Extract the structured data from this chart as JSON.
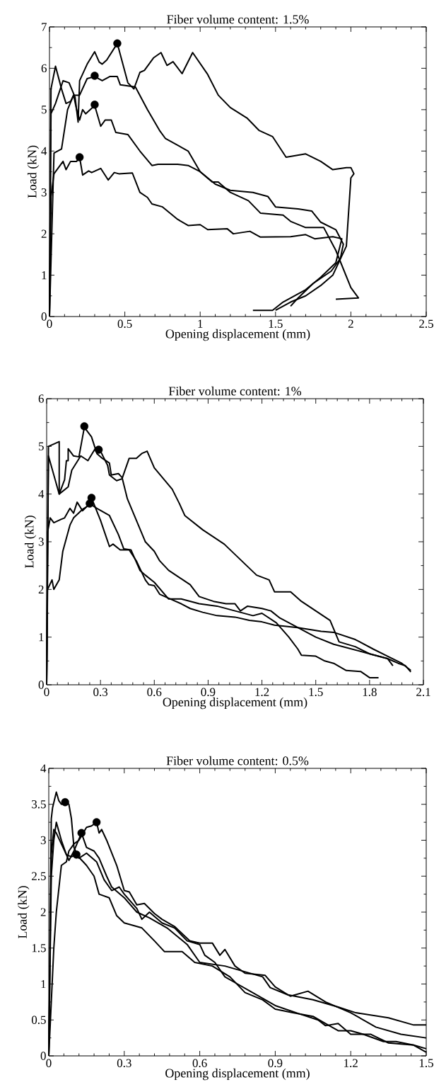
{
  "chart_data": [
    {
      "type": "line",
      "title": "Fiber volume content: 1.5%",
      "xlabel": "Opening displacement (mm)",
      "ylabel": "Load (kN)",
      "line_style": "solid",
      "xlim": [
        0,
        2.5
      ],
      "ylim": [
        0,
        7
      ],
      "xticks": [
        0,
        {
          "value": 0.1,
          "label": null
        },
        {
          "value": 0.2,
          "label": null
        },
        {
          "value": 0.3,
          "label": null
        },
        {
          "value": 0.4,
          "label": null
        },
        0.5,
        {
          "value": 0.6,
          "label": null
        },
        {
          "value": 0.7,
          "label": null
        },
        {
          "value": 0.8,
          "label": null
        },
        {
          "value": 0.9,
          "label": null
        },
        1,
        {
          "value": 1.1,
          "label": null
        },
        {
          "value": 1.2,
          "label": null
        },
        {
          "value": 1.3,
          "label": null
        },
        {
          "value": 1.4,
          "label": null
        },
        1.5,
        {
          "value": 1.6,
          "label": null
        },
        {
          "value": 1.7,
          "label": null
        },
        {
          "value": 1.8,
          "label": null
        },
        {
          "value": 1.9,
          "label": null
        },
        2,
        {
          "value": 2.1,
          "label": null
        },
        {
          "value": 2.2,
          "label": null
        },
        {
          "value": 2.3,
          "label": null
        },
        {
          "value": 2.4,
          "label": null
        },
        2.5
      ],
      "yticks": [
        0,
        {
          "value": 0.5,
          "label": null
        },
        1,
        {
          "value": 1.5,
          "label": null
        },
        2,
        {
          "value": 2.5,
          "label": null
        },
        3,
        {
          "value": 3.5,
          "label": null
        },
        4,
        {
          "value": 4.5,
          "label": null
        },
        5,
        {
          "value": 5.5,
          "label": null
        },
        6,
        {
          "value": 6.5,
          "label": null
        },
        7
      ],
      "series": [
        {
          "color": "#000000",
          "x": [
            0,
            0.01,
            0.04,
            0.09,
            0.13,
            0.17,
            0.19,
            0.2,
            0.25,
            0.3,
            0.33,
            0.35,
            0.38,
            0.45,
            0.52,
            0.56,
            0.6,
            0.63,
            0.69,
            0.74,
            0.78,
            0.82,
            0.88,
            0.95,
            1.05,
            1.12,
            1.2,
            1.31,
            1.39,
            1.48,
            1.57,
            1.7,
            1.8,
            1.88,
            1.97,
            2.0,
            2.02,
            2.0,
            1.97,
            1.88,
            1.8,
            1.7,
            1.6,
            1.5
          ],
          "values": [
            0,
            4.9,
            5.15,
            5.7,
            5.65,
            5.3,
            4.7,
            5.7,
            6.1,
            6.4,
            6.15,
            6.1,
            6.2,
            6.6,
            5.65,
            5.5,
            5.9,
            5.95,
            6.25,
            6.38,
            6.07,
            6.16,
            5.87,
            6.38,
            5.85,
            5.35,
            5.05,
            4.8,
            4.5,
            4.35,
            3.85,
            3.93,
            3.75,
            3.55,
            3.6,
            3.6,
            3.45,
            3.35,
            1.7,
            1.0,
            0.75,
            0.5,
            0.35,
            0.15
          ]
        },
        {
          "color": "#000000",
          "x": [
            0,
            0.03,
            0.08,
            0.12,
            0.16,
            0.2,
            0.25,
            0.3,
            0.35,
            0.4,
            0.45,
            0.47,
            0.57,
            0.65,
            0.73,
            0.77,
            0.92,
            1.0,
            1.08,
            1.12,
            1.2,
            1.32,
            1.4,
            1.55,
            1.6,
            1.7,
            1.82,
            1.9,
            2.0,
            2.05,
            1.9
          ],
          "values": [
            0,
            3.95,
            4.05,
            5.0,
            5.35,
            5.35,
            5.75,
            5.8,
            5.7,
            5.8,
            5.8,
            5.6,
            5.55,
            5.0,
            4.5,
            4.3,
            4.0,
            3.5,
            3.25,
            3.25,
            3.0,
            2.8,
            2.5,
            2.45,
            2.3,
            2.15,
            2.15,
            1.6,
            0.7,
            0.45,
            0.42
          ]
        },
        {
          "color": "#000000",
          "x": [
            0,
            0.01,
            0.04,
            0.08,
            0.11,
            0.14,
            0.16,
            0.18,
            0.2,
            0.22,
            0.24,
            0.3,
            0.34,
            0.37,
            0.41,
            0.44,
            0.52,
            0.6,
            0.68,
            0.72,
            0.85,
            0.92,
            1.0,
            1.05,
            1.1,
            1.2,
            1.35,
            1.45,
            1.5,
            1.65,
            1.74,
            1.8,
            1.9,
            1.95,
            1.93,
            1.87,
            1.75,
            1.65,
            1.6
          ],
          "values": [
            0,
            5.5,
            6.05,
            5.5,
            5.15,
            5.2,
            5.35,
            5.0,
            4.75,
            5.0,
            4.9,
            5.1,
            4.6,
            4.75,
            4.75,
            4.45,
            4.4,
            4.0,
            3.65,
            3.68,
            3.68,
            3.65,
            3.5,
            3.35,
            3.2,
            3.05,
            3.0,
            2.9,
            2.65,
            2.6,
            2.55,
            2.28,
            2.1,
            1.75,
            1.4,
            1.1,
            0.8,
            0.45,
            0.25
          ]
        },
        {
          "color": "#000000",
          "x": [
            0,
            0.01,
            0.03,
            0.06,
            0.09,
            0.11,
            0.14,
            0.18,
            0.2,
            0.22,
            0.26,
            0.28,
            0.34,
            0.39,
            0.43,
            0.46,
            0.55,
            0.6,
            0.65,
            0.68,
            0.75,
            0.85,
            0.92,
            1.0,
            1.05,
            1.18,
            1.22,
            1.33,
            1.4,
            1.6,
            1.7,
            1.76,
            1.88,
            1.94,
            1.9,
            1.8,
            1.7,
            1.55,
            1.48,
            1.35
          ],
          "values": [
            0,
            2.9,
            3.45,
            3.6,
            3.75,
            3.55,
            3.75,
            3.75,
            3.85,
            3.42,
            3.52,
            3.48,
            3.58,
            3.3,
            3.48,
            3.45,
            3.47,
            3.0,
            2.88,
            2.72,
            2.65,
            2.35,
            2.2,
            2.22,
            2.1,
            2.12,
            2.0,
            2.06,
            1.92,
            1.93,
            1.98,
            1.88,
            1.93,
            1.88,
            1.3,
            0.95,
            0.65,
            0.35,
            0.15,
            0.15
          ]
        },
        {
          "type": "scatter",
          "color": "#000000",
          "x": [
            0.45,
            0.3,
            0.3,
            0.2
          ],
          "values": [
            6.6,
            5.82,
            5.12,
            3.85
          ]
        }
      ]
    },
    {
      "type": "line",
      "title": "Fiber volume content: 1%",
      "xlabel": "Opening displacement (mm)",
      "ylabel": "Load (kN)",
      "line_style": "solid",
      "xlim": [
        0,
        2.1
      ],
      "ylim": [
        0,
        6
      ],
      "xticks": [
        0,
        {
          "value": 0.06,
          "label": null
        },
        {
          "value": 0.12,
          "label": null
        },
        {
          "value": 0.18,
          "label": null
        },
        {
          "value": 0.24,
          "label": null
        },
        0.3,
        {
          "value": 0.36,
          "label": null
        },
        {
          "value": 0.42,
          "label": null
        },
        {
          "value": 0.48,
          "label": null
        },
        {
          "value": 0.54,
          "label": null
        },
        0.6,
        {
          "value": 0.66,
          "label": null
        },
        {
          "value": 0.72,
          "label": null
        },
        {
          "value": 0.78,
          "label": null
        },
        {
          "value": 0.84,
          "label": null
        },
        0.9,
        {
          "value": 0.96,
          "label": null
        },
        {
          "value": 1.02,
          "label": null
        },
        {
          "value": 1.08,
          "label": null
        },
        {
          "value": 1.14,
          "label": null
        },
        1.2,
        {
          "value": 1.26,
          "label": null
        },
        {
          "value": 1.32,
          "label": null
        },
        {
          "value": 1.38,
          "label": null
        },
        {
          "value": 1.44,
          "label": null
        },
        1.5,
        {
          "value": 1.56,
          "label": null
        },
        {
          "value": 1.62,
          "label": null
        },
        {
          "value": 1.68,
          "label": null
        },
        {
          "value": 1.74,
          "label": null
        },
        1.8,
        {
          "value": 1.86,
          "label": null
        },
        {
          "value": 1.92,
          "label": null
        },
        {
          "value": 1.98,
          "label": null
        },
        {
          "value": 2.04,
          "label": null
        },
        2.1
      ],
      "yticks": [
        0,
        {
          "value": 0.5,
          "label": null
        },
        1,
        {
          "value": 1.5,
          "label": null
        },
        2,
        {
          "value": 2.5,
          "label": null
        },
        3,
        {
          "value": 3.5,
          "label": null
        },
        4,
        {
          "value": 4.5,
          "label": null
        },
        5,
        {
          "value": 5.5,
          "label": null
        },
        6
      ],
      "series": [
        {
          "color": "#000000",
          "x": [
            0,
            0.01,
            0.07,
            0.07,
            0.1,
            0.11,
            0.12,
            0.12,
            0.15,
            0.18,
            0.21,
            0.25,
            0.28,
            0.31,
            0.35,
            0.36,
            0.4,
            0.42,
            0.45,
            0.5,
            0.55,
            0.6,
            0.63,
            0.68,
            0.76,
            0.8,
            0.85,
            0.93,
            1.0,
            1.05,
            1.08,
            1.12,
            1.2,
            1.25,
            1.3,
            1.35,
            1.4,
            1.45,
            1.5,
            1.6,
            1.7,
            1.8,
            1.9,
            1.93
          ],
          "values": [
            0,
            5.0,
            5.1,
            4.0,
            4.3,
            4.7,
            4.7,
            4.95,
            4.8,
            4.78,
            5.4,
            5.2,
            4.85,
            4.75,
            4.65,
            4.4,
            4.43,
            4.35,
            3.9,
            3.45,
            3.0,
            2.8,
            2.6,
            2.4,
            2.2,
            2.1,
            1.85,
            1.75,
            1.7,
            1.7,
            1.55,
            1.65,
            1.6,
            1.55,
            1.4,
            1.3,
            1.2,
            1.1,
            1.0,
            0.85,
            0.75,
            0.65,
            0.55,
            0.4
          ]
        },
        {
          "color": "#000000",
          "x": [
            0,
            0.01,
            0.07,
            0.12,
            0.14,
            0.19,
            0.23,
            0.27,
            0.3,
            0.32,
            0.34,
            0.35,
            0.39,
            0.42,
            0.46,
            0.5,
            0.53,
            0.56,
            0.6,
            0.7,
            0.74,
            0.77,
            0.87,
            0.99,
            1.17,
            1.24,
            1.27,
            1.36,
            1.42,
            1.58,
            1.63,
            1.72,
            1.8,
            1.9,
            1.96,
            2.0,
            2.03
          ],
          "values": [
            0,
            4.8,
            4.0,
            4.15,
            4.5,
            4.8,
            4.7,
            4.95,
            4.9,
            4.75,
            4.6,
            4.4,
            4.28,
            4.32,
            4.75,
            4.75,
            4.85,
            4.9,
            4.55,
            4.1,
            3.8,
            3.55,
            3.25,
            2.95,
            2.3,
            2.2,
            1.95,
            1.95,
            1.75,
            1.35,
            0.9,
            0.8,
            0.65,
            0.55,
            0.45,
            0.4,
            0.27
          ]
        },
        {
          "color": "#000000",
          "x": [
            0,
            0.005,
            0.03,
            0.04,
            0.07,
            0.09,
            0.13,
            0.15,
            0.2,
            0.23,
            0.25,
            0.3,
            0.35,
            0.37,
            0.41,
            0.46,
            0.5,
            0.55,
            0.57,
            0.6,
            0.63,
            0.69,
            0.75,
            0.8,
            0.87,
            0.95,
            1.05,
            1.13,
            1.2,
            1.27,
            1.4,
            1.53,
            1.6,
            1.72,
            1.82,
            1.9,
            1.98,
            2.03
          ],
          "values": [
            0,
            2.0,
            2.2,
            2.0,
            2.2,
            2.8,
            3.35,
            3.5,
            3.68,
            3.75,
            3.92,
            3.45,
            2.9,
            2.95,
            2.83,
            2.83,
            2.6,
            2.2,
            2.1,
            2.08,
            1.9,
            1.8,
            1.7,
            1.6,
            1.52,
            1.45,
            1.42,
            1.35,
            1.32,
            1.25,
            1.2,
            1.12,
            1.1,
            0.95,
            0.75,
            0.6,
            0.45,
            0.3
          ]
        },
        {
          "color": "#000000",
          "x": [
            0,
            0.005,
            0.02,
            0.04,
            0.08,
            0.1,
            0.13,
            0.15,
            0.17,
            0.2,
            0.24,
            0.28,
            0.35,
            0.4,
            0.43,
            0.47,
            0.52,
            0.55,
            0.6,
            0.68,
            0.75,
            0.85,
            0.95,
            1.05,
            1.15,
            1.2,
            1.28,
            1.35,
            1.4,
            1.42,
            1.5,
            1.55,
            1.6,
            1.67,
            1.75,
            1.8,
            1.85
          ],
          "values": [
            0,
            3.2,
            3.5,
            3.4,
            3.47,
            3.5,
            3.7,
            3.6,
            3.83,
            3.65,
            3.8,
            3.7,
            3.55,
            3.15,
            2.85,
            2.83,
            2.4,
            2.3,
            2.15,
            1.8,
            1.8,
            1.7,
            1.65,
            1.55,
            1.45,
            1.5,
            1.3,
            1.0,
            0.75,
            0.62,
            0.6,
            0.5,
            0.45,
            0.3,
            0.28,
            0.15,
            0.15
          ]
        },
        {
          "type": "scatter",
          "color": "#000000",
          "x": [
            0.21,
            0.29,
            0.25,
            0.24
          ],
          "values": [
            5.42,
            4.93,
            3.92,
            3.8
          ]
        }
      ]
    },
    {
      "type": "line",
      "title": "Fiber volume content: 0.5%",
      "xlabel": "Opening displacement (mm)",
      "ylabel": "Load (kN)",
      "line_style": "solid",
      "xlim": [
        0,
        1.5
      ],
      "ylim": [
        0,
        4
      ],
      "xticks": [
        0,
        {
          "value": 0.06,
          "label": null
        },
        {
          "value": 0.12,
          "label": null
        },
        {
          "value": 0.18,
          "label": null
        },
        {
          "value": 0.24,
          "label": null
        },
        0.3,
        {
          "value": 0.36,
          "label": null
        },
        {
          "value": 0.42,
          "label": null
        },
        {
          "value": 0.48,
          "label": null
        },
        {
          "value": 0.54,
          "label": null
        },
        0.6,
        {
          "value": 0.66,
          "label": null
        },
        {
          "value": 0.72,
          "label": null
        },
        {
          "value": 0.78,
          "label": null
        },
        {
          "value": 0.84,
          "label": null
        },
        0.9,
        {
          "value": 0.96,
          "label": null
        },
        {
          "value": 1.02,
          "label": null
        },
        {
          "value": 1.08,
          "label": null
        },
        {
          "value": 1.14,
          "label": null
        },
        1.2,
        {
          "value": 1.26,
          "label": null
        },
        {
          "value": 1.32,
          "label": null
        },
        {
          "value": 1.38,
          "label": null
        },
        {
          "value": 1.44,
          "label": null
        },
        1.5
      ],
      "yticks": [
        0,
        {
          "value": 0.25,
          "label": null
        },
        0.5,
        {
          "value": 0.75,
          "label": null
        },
        1,
        {
          "value": 1.25,
          "label": null
        },
        1.5,
        {
          "value": 1.75,
          "label": null
        },
        2,
        {
          "value": 2.25,
          "label": null
        },
        2.5,
        {
          "value": 2.75,
          "label": null
        },
        3,
        {
          "value": 3.25,
          "label": null
        },
        3.5,
        {
          "value": 3.75,
          "label": null
        },
        4
      ],
      "series": [
        {
          "color": "#000000",
          "x": [
            0,
            0.01,
            0.015,
            0.03,
            0.04,
            0.05,
            0.07,
            0.08,
            0.09,
            0.1,
            0.12,
            0.15,
            0.19,
            0.22,
            0.25,
            0.28,
            0.3,
            0.35,
            0.37,
            0.4,
            0.45,
            0.5,
            0.55,
            0.6,
            0.62,
            0.66,
            0.7,
            0.75,
            0.8,
            0.9,
            1.0,
            1.07,
            1.1,
            1.15,
            1.2,
            1.28,
            1.35,
            1.45,
            1.5
          ],
          "values": [
            0,
            3.3,
            3.45,
            3.67,
            3.55,
            3.5,
            3.53,
            3.5,
            3.3,
            2.9,
            2.75,
            2.82,
            2.7,
            2.45,
            2.3,
            2.35,
            2.25,
            2.05,
            1.9,
            2.0,
            1.85,
            1.78,
            1.6,
            1.55,
            1.4,
            1.3,
            1.1,
            1.0,
            0.9,
            0.7,
            0.58,
            0.5,
            0.42,
            0.45,
            0.3,
            0.3,
            0.18,
            0.15,
            0.05
          ]
        },
        {
          "color": "#000000",
          "x": [
            0,
            0.02,
            0.03,
            0.05,
            0.07,
            0.08,
            0.1,
            0.12,
            0.15,
            0.17,
            0.19,
            0.2,
            0.21,
            0.23,
            0.27,
            0.3,
            0.32,
            0.35,
            0.38,
            0.42,
            0.45,
            0.5,
            0.56,
            0.6,
            0.65,
            0.68,
            0.7,
            0.74,
            0.78,
            0.86,
            0.9,
            0.96,
            1.03,
            1.1,
            1.2,
            1.3,
            1.4,
            1.5
          ],
          "values": [
            0,
            1.5,
            2.0,
            2.65,
            2.7,
            2.85,
            2.95,
            3.0,
            3.18,
            3.2,
            3.25,
            3.1,
            3.15,
            3.0,
            2.65,
            2.3,
            2.28,
            2.1,
            2.12,
            1.98,
            1.9,
            1.8,
            1.6,
            1.57,
            1.57,
            1.4,
            1.48,
            1.25,
            1.15,
            1.12,
            0.96,
            0.83,
            0.9,
            0.75,
            0.6,
            0.4,
            0.3,
            0.25
          ]
        },
        {
          "color": "#000000",
          "x": [
            0,
            0.01,
            0.02,
            0.03,
            0.05,
            0.07,
            0.08,
            0.1,
            0.13,
            0.15,
            0.18,
            0.2,
            0.23,
            0.25,
            0.3,
            0.35,
            0.4,
            0.47,
            0.55,
            0.6,
            0.7,
            0.8,
            0.85,
            0.88,
            0.95,
            1.05,
            1.15,
            1.22,
            1.35,
            1.45,
            1.5
          ],
          "values": [
            0,
            2.8,
            3.15,
            3.1,
            2.95,
            2.8,
            2.72,
            2.85,
            3.1,
            2.9,
            2.85,
            2.75,
            2.5,
            2.35,
            2.2,
            2.0,
            1.92,
            1.78,
            1.55,
            1.3,
            1.25,
            1.15,
            1.1,
            0.95,
            0.85,
            0.78,
            0.68,
            0.6,
            0.53,
            0.43,
            0.43
          ]
        },
        {
          "color": "#000000",
          "x": [
            0,
            0.01,
            0.02,
            0.03,
            0.05,
            0.07,
            0.09,
            0.11,
            0.15,
            0.18,
            0.2,
            0.24,
            0.27,
            0.3,
            0.37,
            0.42,
            0.46,
            0.53,
            0.58,
            0.65,
            0.72,
            0.78,
            0.85,
            0.9,
            0.97,
            1.05,
            1.1,
            1.15,
            1.2,
            1.25,
            1.33,
            1.38,
            1.45,
            1.5
          ],
          "values": [
            0,
            2.5,
            3.0,
            3.25,
            3.0,
            2.8,
            2.77,
            2.8,
            2.65,
            2.5,
            2.25,
            2.2,
            1.95,
            1.85,
            1.78,
            1.6,
            1.45,
            1.45,
            1.3,
            1.25,
            1.1,
            0.88,
            0.78,
            0.65,
            0.6,
            0.55,
            0.45,
            0.35,
            0.35,
            0.3,
            0.2,
            0.2,
            0.15,
            0.1
          ]
        },
        {
          "type": "scatter",
          "color": "#000000",
          "x": [
            0.065,
            0.19,
            0.13,
            0.11
          ],
          "values": [
            3.53,
            3.25,
            3.1,
            2.8
          ]
        }
      ]
    }
  ]
}
